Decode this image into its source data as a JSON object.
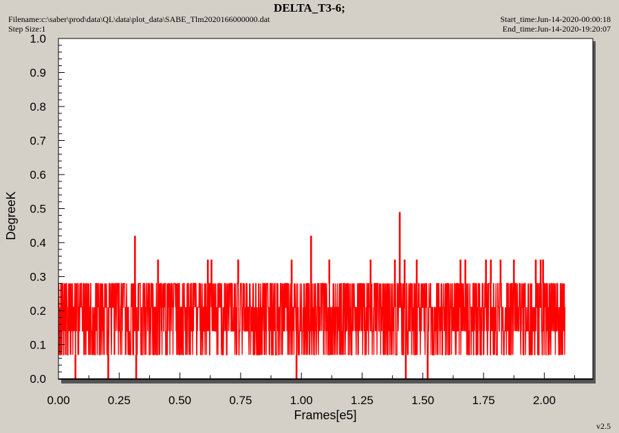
{
  "header": {
    "title": "DELTA_T3-6;",
    "filename": "Filename:c:\\saber\\prod\\data\\QL\\data\\plot_data\\SABE_Tlm2020166000000.dat",
    "step_size": "Step Size:1",
    "start_time": "Start_time:Jun-14-2020-00:00:18",
    "end_time": "End_time:Jun-14-2020-19:20:07"
  },
  "version": "v2.5",
  "colors": {
    "plot_background": "#ffffff",
    "window_background": "#d4d0c8",
    "series": "#ff0000",
    "shadow": "#555555"
  },
  "chart_data": {
    "type": "line",
    "title": "DELTA_T3-6;",
    "xlabel": "Frames[e5]",
    "ylabel": "DegreeK",
    "xlim": [
      0,
      2.2
    ],
    "ylim": [
      0,
      1.0
    ],
    "x_ticks": [
      "0.00",
      "0.25",
      "0.50",
      "0.75",
      "1.00",
      "1.25",
      "1.50",
      "1.75",
      "2.00"
    ],
    "y_ticks": [
      "0.0",
      "0.1",
      "0.2",
      "0.3",
      "0.4",
      "0.5",
      "0.6",
      "0.7",
      "0.8",
      "0.9",
      "1.0"
    ],
    "grid": false,
    "series": [
      {
        "name": "DELTA_T3-6",
        "x_range": [
          0.0,
          2.085
        ],
        "dominant_band": [
          0.07,
          0.28
        ],
        "common_levels": [
          0.07,
          0.14,
          0.21,
          0.28
        ],
        "spikes": [
          {
            "x": 0.315,
            "y": 0.42
          },
          {
            "x": 0.41,
            "y": 0.35
          },
          {
            "x": 0.615,
            "y": 0.35
          },
          {
            "x": 0.63,
            "y": 0.35
          },
          {
            "x": 0.74,
            "y": 0.35
          },
          {
            "x": 0.96,
            "y": 0.35
          },
          {
            "x": 1.04,
            "y": 0.42
          },
          {
            "x": 1.115,
            "y": 0.35
          },
          {
            "x": 1.285,
            "y": 0.35
          },
          {
            "x": 1.385,
            "y": 0.35
          },
          {
            "x": 1.405,
            "y": 0.49
          },
          {
            "x": 1.425,
            "y": 0.35
          },
          {
            "x": 1.475,
            "y": 0.35
          },
          {
            "x": 1.655,
            "y": 0.35
          },
          {
            "x": 1.675,
            "y": 0.35
          },
          {
            "x": 1.76,
            "y": 0.35
          },
          {
            "x": 1.78,
            "y": 0.35
          },
          {
            "x": 1.82,
            "y": 0.35
          },
          {
            "x": 1.875,
            "y": 0.35
          },
          {
            "x": 1.965,
            "y": 0.35
          },
          {
            "x": 1.985,
            "y": 0.35
          },
          {
            "x": 1.995,
            "y": 0.35
          }
        ],
        "dips": [
          {
            "x": 0.07,
            "y": 0.0
          },
          {
            "x": 0.205,
            "y": 0.0
          },
          {
            "x": 0.32,
            "y": 0.0
          },
          {
            "x": 0.98,
            "y": 0.0
          },
          {
            "x": 1.43,
            "y": 0.0
          },
          {
            "x": 1.52,
            "y": 0.0
          }
        ]
      }
    ]
  }
}
